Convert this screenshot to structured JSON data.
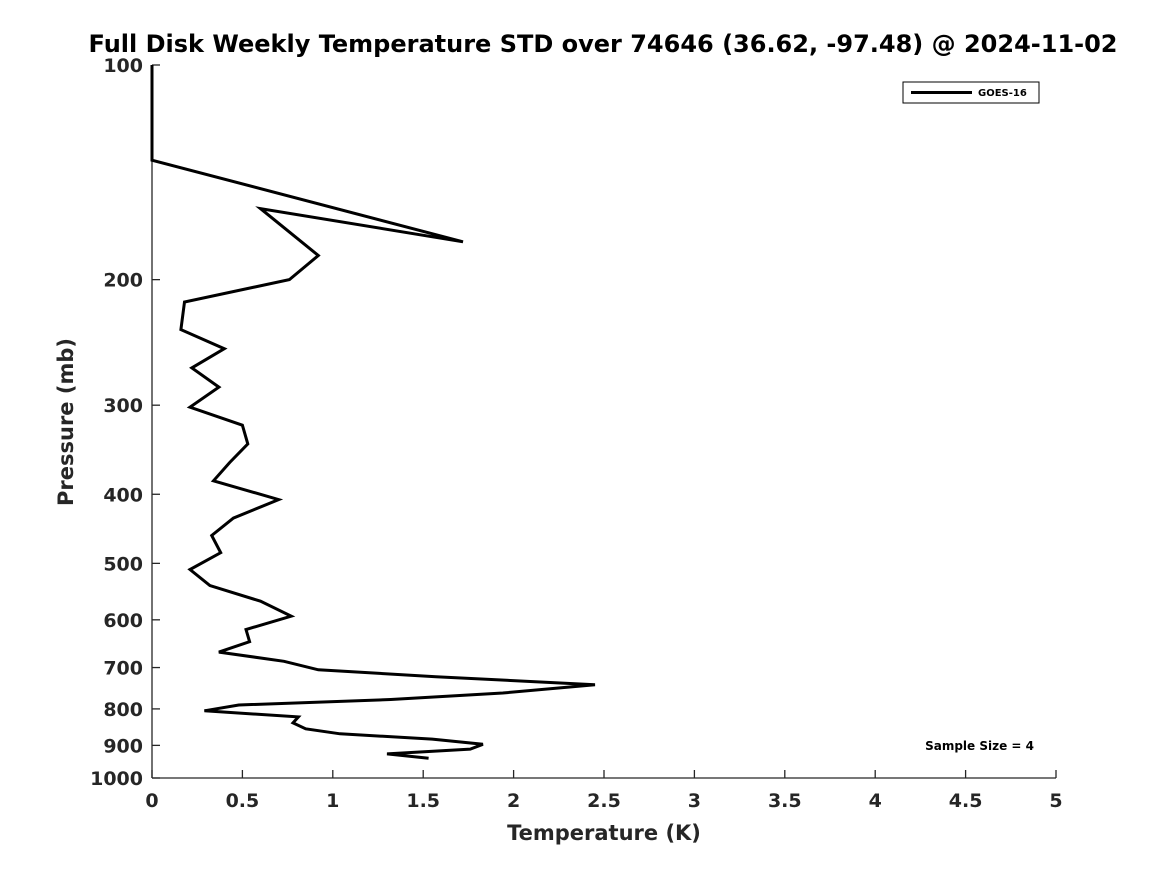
{
  "chart_data": {
    "type": "line",
    "title": "Full Disk Weekly Temperature STD over 74646 (36.62, -97.48) @ 2024-11-02",
    "xlabel": "Temperature (K)",
    "ylabel": "Pressure (mb)",
    "xlim": [
      0,
      5
    ],
    "ylim": [
      100,
      1000
    ],
    "y_scale": "log",
    "y_inverted": true,
    "x_ticks": [
      0,
      0.5,
      1,
      1.5,
      2,
      2.5,
      3,
      3.5,
      4,
      4.5,
      5
    ],
    "x_tick_labels": [
      "0",
      "0.5",
      "1",
      "1.5",
      "2",
      "2.5",
      "3",
      "3.5",
      "4",
      "4.5",
      "5"
    ],
    "y_ticks": [
      100,
      200,
      300,
      400,
      500,
      600,
      700,
      800,
      900,
      1000
    ],
    "y_tick_labels": [
      "100",
      "200",
      "300",
      "400",
      "500",
      "600",
      "700",
      "800",
      "900",
      "1000"
    ],
    "grid": false,
    "legend_position": "top-right",
    "line_color": "#000000",
    "series": [
      {
        "name": "GOES-16",
        "x": [
          0.0,
          0.0,
          1.72,
          0.6,
          0.92,
          0.76,
          0.18,
          0.16,
          0.4,
          0.22,
          0.37,
          0.21,
          0.5,
          0.53,
          0.43,
          0.34,
          0.7,
          0.45,
          0.33,
          0.38,
          0.21,
          0.32,
          0.6,
          0.77,
          0.52,
          0.54,
          0.37,
          0.73,
          0.92,
          1.57,
          2.45,
          1.94,
          1.32,
          0.48,
          0.29,
          0.81,
          0.78,
          0.85,
          1.04,
          1.55,
          1.83,
          1.76,
          1.3,
          1.53
        ],
        "y": [
          100,
          136,
          177,
          159,
          185,
          200,
          215,
          235,
          250,
          266,
          283,
          302,
          320,
          340,
          361,
          383,
          407,
          432,
          457,
          483,
          510,
          537,
          565,
          593,
          619,
          644,
          666,
          686,
          705,
          721,
          740,
          760,
          776,
          790,
          805,
          821,
          837,
          853,
          867,
          882,
          897,
          911,
          925,
          938
        ]
      }
    ],
    "annotation": "Sample Size = 4"
  }
}
